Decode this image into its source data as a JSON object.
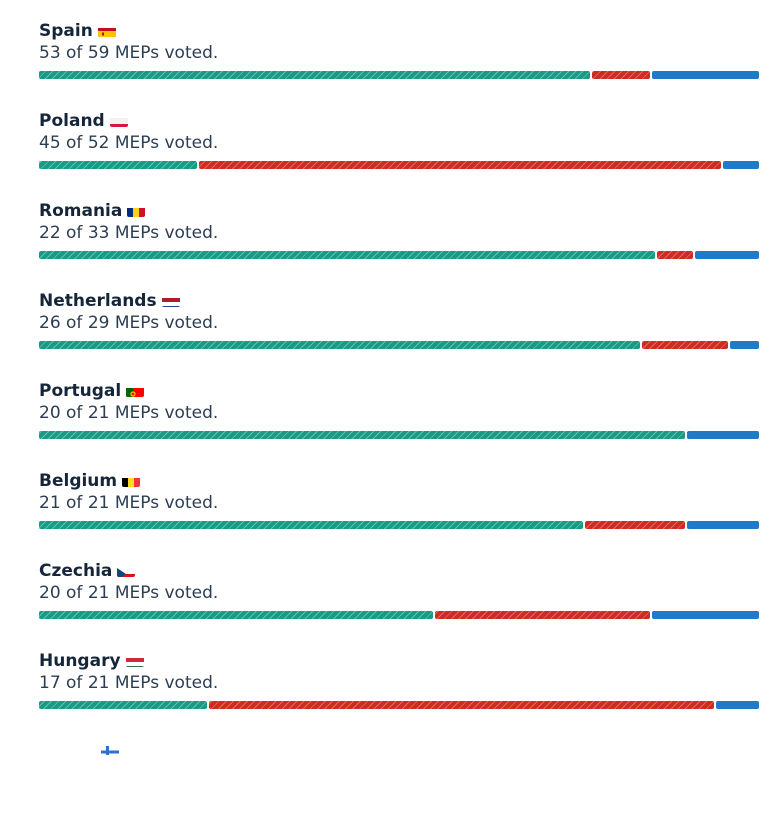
{
  "colors": {
    "for": "#169c85",
    "against": "#cf2b22",
    "abstain": "#1f7ac7"
  },
  "countries": [
    {
      "name": "Spain",
      "flag": "spain-flag",
      "voted_text": "53 of 59 MEPs voted.",
      "shares": [
        0.77,
        0.08,
        0.15
      ]
    },
    {
      "name": "Poland",
      "flag": "poland-flag",
      "voted_text": "45 of 52 MEPs voted.",
      "shares": [
        0.22,
        0.73,
        0.05
      ]
    },
    {
      "name": "Romania",
      "flag": "romania-flag",
      "voted_text": "22 of 33 MEPs voted.",
      "shares": [
        0.86,
        0.05,
        0.09
      ]
    },
    {
      "name": "Netherlands",
      "flag": "netherlands-flag",
      "voted_text": "26 of 29 MEPs voted.",
      "shares": [
        0.84,
        0.12,
        0.04
      ]
    },
    {
      "name": "Portugal",
      "flag": "portugal-flag",
      "voted_text": "20 of 21 MEPs voted.",
      "shares": [
        0.9,
        0.0,
        0.1
      ]
    },
    {
      "name": "Belgium",
      "flag": "belgium-flag",
      "voted_text": "21 of 21 MEPs voted.",
      "shares": [
        0.76,
        0.14,
        0.1
      ]
    },
    {
      "name": "Czechia",
      "flag": "czechia-flag",
      "voted_text": "20 of 21 MEPs voted.",
      "shares": [
        0.55,
        0.3,
        0.15
      ]
    },
    {
      "name": "Hungary",
      "flag": "hungary-flag",
      "voted_text": "17 of 21 MEPs voted.",
      "shares": [
        0.235,
        0.705,
        0.06
      ]
    }
  ]
}
